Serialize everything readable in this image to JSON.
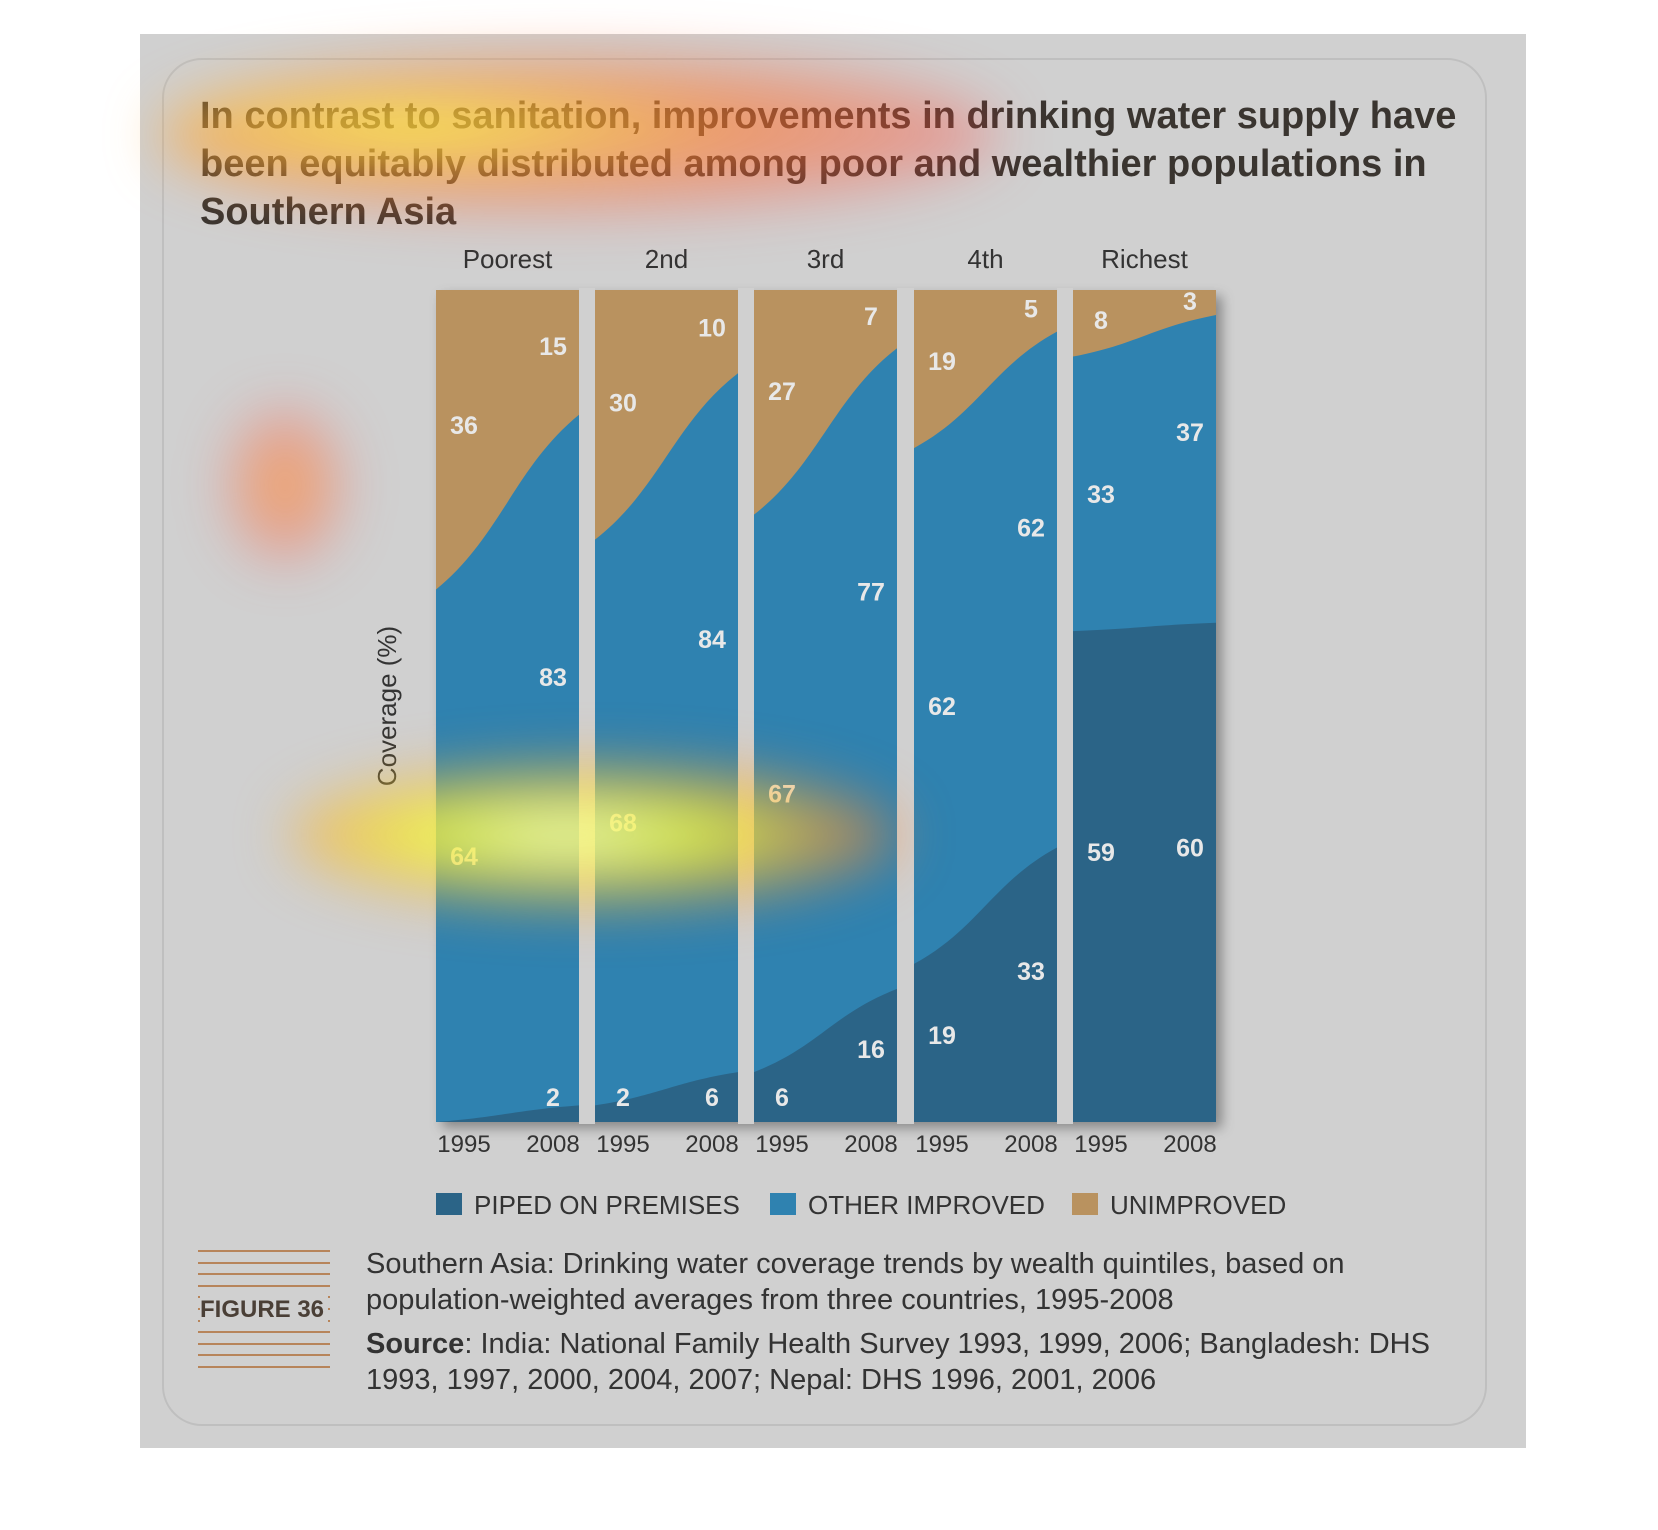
{
  "headline": "In contrast to sanitation, improvements in drinking water supply have been equitably distributed among poor and wealthier populations in Southern Asia",
  "figure_label": "FIGURE 36",
  "caption": "Southern Asia: Drinking water coverage trends by wealth quintiles, based on population-weighted averages from three countries, 1995-2008",
  "source_label": "Source",
  "source_text": ": India: National Family Health Survey 1993, 1999, 2006; Bangladesh: DHS 1993, 1997, 2000, 2004, 2007; Nepal: DHS 1996, 2001, 2006",
  "colors": {
    "piped": "#2b6487",
    "other": "#2f82b0",
    "unimproved": "#b9925f",
    "page": "#d0d0d0"
  },
  "chart_data": {
    "type": "area",
    "stacked": true,
    "ylabel": "Coverage (%)",
    "ylim": [
      0,
      100
    ],
    "grid": false,
    "legend_placement": "bottom",
    "legend": [
      {
        "name": "PIPED ON PREMISES",
        "color": "#2b6487"
      },
      {
        "name": "OTHER IMPROVED",
        "color": "#2f82b0"
      },
      {
        "name": "UNIMPROVED",
        "color": "#b9925f"
      }
    ],
    "panels": [
      {
        "name": "Poorest",
        "x": [
          "1995",
          "2008"
        ],
        "piped": [
          0,
          2
        ],
        "other_improved": [
          64,
          83
        ],
        "unimproved": [
          36,
          15
        ],
        "piped_labels": [
          "",
          "2"
        ]
      },
      {
        "name": "2nd",
        "x": [
          "1995",
          "2008"
        ],
        "piped": [
          2,
          6
        ],
        "other_improved": [
          68,
          84
        ],
        "unimproved": [
          30,
          10
        ],
        "piped_labels": [
          "2",
          "6"
        ]
      },
      {
        "name": "3rd",
        "x": [
          "1995",
          "2008"
        ],
        "piped": [
          6,
          16
        ],
        "other_improved": [
          67,
          77
        ],
        "unimproved": [
          27,
          7
        ],
        "piped_labels": [
          "6",
          "16"
        ]
      },
      {
        "name": "4th",
        "x": [
          "1995",
          "2008"
        ],
        "piped": [
          19,
          33
        ],
        "other_improved": [
          62,
          62
        ],
        "unimproved": [
          19,
          5
        ],
        "piped_labels": [
          "19",
          "33"
        ]
      },
      {
        "name": "Richest",
        "x": [
          "1995",
          "2008"
        ],
        "piped": [
          59,
          60
        ],
        "other_improved": [
          33,
          37
        ],
        "unimproved": [
          8,
          3
        ],
        "piped_labels": [
          "59",
          "60"
        ]
      }
    ]
  }
}
